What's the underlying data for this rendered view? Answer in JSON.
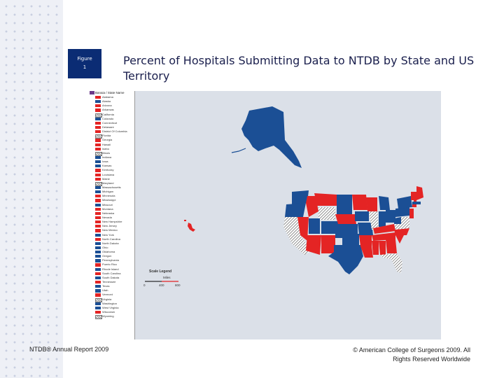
{
  "figure": {
    "label_line1": "Figure",
    "label_line2": "1"
  },
  "title": "Percent of Hospitals Submitting Data to NTDB by State and US Territory",
  "legend": {
    "header": "Banaia / State Name",
    "items": [
      {
        "name": "Alabama",
        "fill": "red"
      },
      {
        "name": "Alaska",
        "fill": "blue"
      },
      {
        "name": "Arizona",
        "fill": "red"
      },
      {
        "name": "Arkansas",
        "fill": "red"
      },
      {
        "name": "California",
        "fill": "hatch"
      },
      {
        "name": "Colorado",
        "fill": "blue"
      },
      {
        "name": "Connecticut",
        "fill": "red"
      },
      {
        "name": "Delaware",
        "fill": "red"
      },
      {
        "name": "District Of Columbia",
        "fill": "red"
      },
      {
        "name": "Florida",
        "fill": "hatch"
      },
      {
        "name": "Georgia",
        "fill": "red"
      },
      {
        "name": "Hawaii",
        "fill": "red"
      },
      {
        "name": "Idaho",
        "fill": "red"
      },
      {
        "name": "Illinois",
        "fill": "hatch"
      },
      {
        "name": "Indiana",
        "fill": "blue"
      },
      {
        "name": "Iowa",
        "fill": "blue"
      },
      {
        "name": "Kansas",
        "fill": "blue"
      },
      {
        "name": "Kentucky",
        "fill": "red"
      },
      {
        "name": "Louisiana",
        "fill": "red"
      },
      {
        "name": "Maine",
        "fill": "red"
      },
      {
        "name": "Maryland",
        "fill": "hatch"
      },
      {
        "name": "Massachusetts",
        "fill": "blue"
      },
      {
        "name": "Michigan",
        "fill": "blue"
      },
      {
        "name": "Minnesota",
        "fill": "red"
      },
      {
        "name": "Mississippi",
        "fill": "red"
      },
      {
        "name": "Missouri",
        "fill": "blue"
      },
      {
        "name": "Montana",
        "fill": "red"
      },
      {
        "name": "Nebraska",
        "fill": "red"
      },
      {
        "name": "Nevada",
        "fill": "red"
      },
      {
        "name": "New Hampshire",
        "fill": "red"
      },
      {
        "name": "New Jersey",
        "fill": "red"
      },
      {
        "name": "New Mexico",
        "fill": "red"
      },
      {
        "name": "New York",
        "fill": "blue"
      },
      {
        "name": "North Carolina",
        "fill": "red"
      },
      {
        "name": "North Dakota",
        "fill": "blue"
      },
      {
        "name": "Ohio",
        "fill": "blue"
      },
      {
        "name": "Oklahoma",
        "fill": "blue"
      },
      {
        "name": "Oregon",
        "fill": "blue"
      },
      {
        "name": "Pennsylvania",
        "fill": "blue"
      },
      {
        "name": "Puerto Rico",
        "fill": "red"
      },
      {
        "name": "Rhode Island",
        "fill": "blue"
      },
      {
        "name": "South Carolina",
        "fill": "red"
      },
      {
        "name": "South Dakota",
        "fill": "blue"
      },
      {
        "name": "Tennessee",
        "fill": "red"
      },
      {
        "name": "Texas",
        "fill": "blue"
      },
      {
        "name": "Utah",
        "fill": "blue"
      },
      {
        "name": "Vermont",
        "fill": "red"
      },
      {
        "name": "Virginia",
        "fill": "hatch"
      },
      {
        "name": "Washington",
        "fill": "blue"
      },
      {
        "name": "West Virginia",
        "fill": "blue"
      },
      {
        "name": "Wisconsin",
        "fill": "red"
      },
      {
        "name": "Wyoming",
        "fill": "hatch"
      }
    ]
  },
  "scale_legend": {
    "title": "Scale Legend",
    "unit": "Miles",
    "ticks": [
      "0",
      "400",
      "800"
    ]
  },
  "colors": {
    "red": "#e42424",
    "blue": "#1b4f95",
    "ocean": "#dbe0e8",
    "badge": "#0b2c74"
  },
  "footer": {
    "left": "NTDB® Annual Report 2009",
    "right_line1": "© American College of Surgeons 2009. All",
    "right_line2": "Rights Reserved Worldwide"
  }
}
